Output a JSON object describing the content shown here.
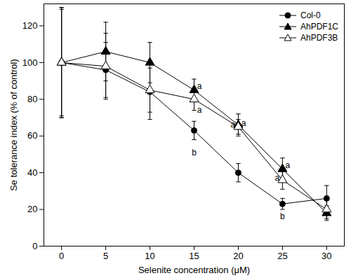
{
  "chart_data": {
    "type": "line",
    "x_label": "Selenite concentration (μM)",
    "y_label": "Se tolerance index (% of control)",
    "x": [
      0,
      5,
      10,
      15,
      20,
      25,
      30
    ],
    "xlim": [
      -2,
      32
    ],
    "xticks": [
      0,
      5,
      10,
      15,
      20,
      25,
      30
    ],
    "ylim": [
      0,
      132
    ],
    "yticks": [
      0,
      20,
      40,
      60,
      80,
      100,
      120
    ],
    "grid": false,
    "legend": "top-right",
    "series": [
      {
        "name": "Col-0",
        "color": "#000000",
        "marker": "circle",
        "line_style": "solid",
        "values": [
          100,
          96,
          84,
          63,
          40,
          23,
          26
        ],
        "errors": [
          30,
          15,
          15,
          5,
          5,
          3,
          7
        ]
      },
      {
        "name": "AhPDF1C",
        "color": "#000000",
        "marker": "triangle",
        "line_style": "solid",
        "values": [
          100,
          106,
          100,
          85,
          66,
          42,
          18
        ],
        "errors": [
          29,
          16,
          11,
          6,
          6,
          6,
          4
        ]
      },
      {
        "name": "AhPDF3B",
        "color": "#000000",
        "marker": "triangle-open",
        "line_style": "solid",
        "values": [
          100,
          98,
          85,
          80,
          65,
          36,
          20
        ],
        "errors": [
          30,
          18,
          12,
          6,
          4,
          5,
          5
        ]
      }
    ],
    "annotations": [
      {
        "x": 15.6,
        "y": 87,
        "text": "a"
      },
      {
        "x": 15.6,
        "y": 74,
        "text": "a"
      },
      {
        "x": 15,
        "y": 51,
        "text": "b"
      },
      {
        "x": 19.4,
        "y": 66,
        "text": "a"
      },
      {
        "x": 20.6,
        "y": 67,
        "text": "a"
      },
      {
        "x": 25.6,
        "y": 44,
        "text": "a"
      },
      {
        "x": 24.4,
        "y": 37,
        "text": "a"
      },
      {
        "x": 25,
        "y": 16,
        "text": "b"
      }
    ]
  }
}
